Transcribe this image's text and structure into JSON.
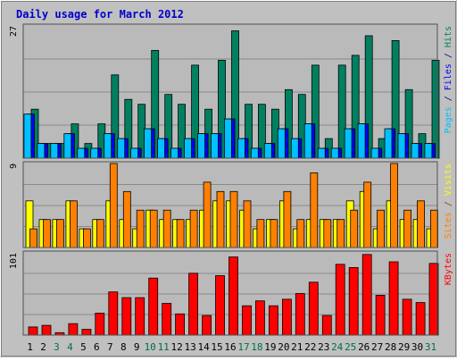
{
  "chart_data": {
    "type": "bar",
    "title": "Daily usage for March 2012",
    "categories": [
      "1",
      "2",
      "3",
      "4",
      "5",
      "6",
      "7",
      "8",
      "9",
      "10",
      "11",
      "12",
      "13",
      "14",
      "15",
      "16",
      "17",
      "18",
      "19",
      "20",
      "21",
      "22",
      "23",
      "24",
      "25",
      "26",
      "27",
      "28",
      "29",
      "30",
      "31"
    ],
    "weekend_days": [
      "3",
      "4",
      "10",
      "11",
      "17",
      "18",
      "24",
      "25",
      "31"
    ],
    "panels": [
      {
        "id": "hits-panel",
        "max_label": "27",
        "ylim": [
          0,
          27
        ],
        "legend": [
          {
            "text": "Pages",
            "color": "#00c0ff"
          },
          {
            "text": " / ",
            "color": "#000080"
          },
          {
            "text": "Files",
            "color": "#0000ff"
          },
          {
            "text": " / ",
            "color": "#000080"
          },
          {
            "text": "Hits",
            "color": "#008060"
          }
        ],
        "series": [
          {
            "name": "Hits",
            "color": "#008060",
            "values": [
              10,
              3,
              3,
              7,
              3,
              7,
              17,
              12,
              11,
              22,
              13,
              11,
              19,
              10,
              20,
              26,
              11,
              11,
              10,
              14,
              13,
              19,
              4,
              19,
              21,
              25,
              4,
              24,
              14,
              5,
              20
            ]
          },
          {
            "name": "Files",
            "color": "#0000ff",
            "values": [
              9,
              3,
              3,
              5,
              2,
              2,
              5,
              4,
              2,
              6,
              4,
              2,
              4,
              5,
              5,
              8,
              4,
              2,
              3,
              6,
              4,
              7,
              2,
              2,
              6,
              7,
              2,
              6,
              5,
              3,
              3
            ]
          },
          {
            "name": "Pages",
            "color": "#00c0ff",
            "values": [
              9,
              3,
              3,
              5,
              2,
              2,
              5,
              4,
              2,
              6,
              4,
              2,
              4,
              5,
              5,
              8,
              4,
              2,
              3,
              6,
              4,
              7,
              2,
              2,
              6,
              7,
              2,
              6,
              5,
              3,
              3
            ]
          }
        ]
      },
      {
        "id": "visits-panel",
        "max_label": "9",
        "ylim": [
          0,
          9
        ],
        "legend": [
          {
            "text": "Sites",
            "color": "#ff8000"
          },
          {
            "text": " / ",
            "color": "#804000"
          },
          {
            "text": "Visits",
            "color": "#ffff00"
          }
        ],
        "series": [
          {
            "name": "Visits",
            "color": "#ffff00",
            "values": [
              5,
              3,
              3,
              5,
              2,
              3,
              5,
              3,
              2,
              4,
              3,
              3,
              3,
              4,
              5,
              5,
              4,
              2,
              3,
              5,
              2,
              3,
              3,
              3,
              5,
              6,
              2,
              5,
              3,
              3,
              2
            ]
          },
          {
            "name": "Sites",
            "color": "#ff8000",
            "values": [
              2,
              3,
              3,
              5,
              2,
              3,
              9,
              6,
              4,
              4,
              4,
              3,
              4,
              7,
              6,
              6,
              5,
              3,
              3,
              6,
              3,
              8,
              3,
              3,
              4,
              7,
              4,
              9,
              4,
              5,
              4
            ]
          }
        ]
      },
      {
        "id": "kbytes-panel",
        "max_label": "101",
        "ylim": [
          0,
          101
        ],
        "legend": [
          {
            "text": "KBytes",
            "color": "#ff0000"
          }
        ],
        "series": [
          {
            "name": "KBytes",
            "color": "#ff0000",
            "values": [
              10,
              12,
              3,
              14,
              7,
              27,
              53,
              46,
              46,
              70,
              39,
              26,
              76,
              24,
              73,
              96,
              36,
              42,
              36,
              44,
              51,
              65,
              24,
              87,
              83,
              99,
              49,
              90,
              44,
              40,
              88
            ]
          }
        ]
      }
    ]
  }
}
